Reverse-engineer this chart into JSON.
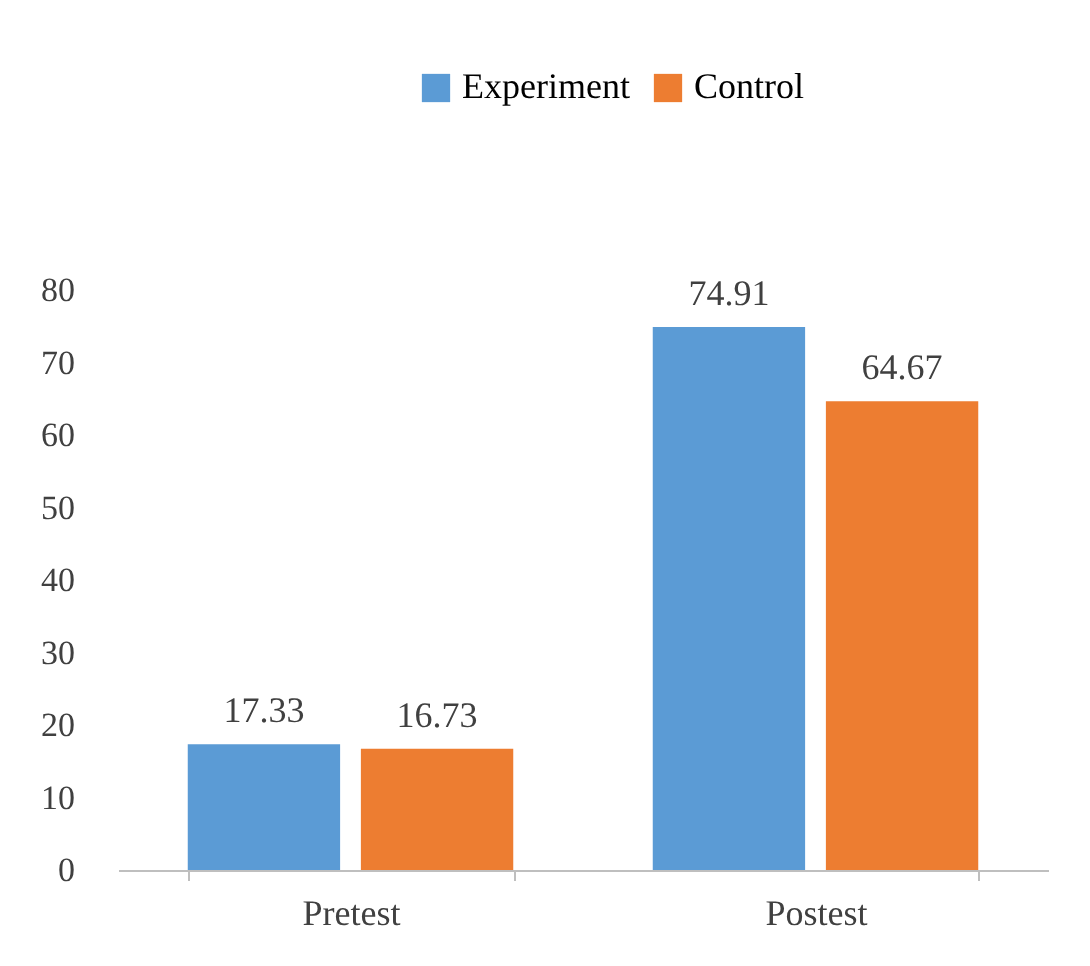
{
  "chart_data": {
    "type": "bar",
    "categories": [
      "Pretest",
      "Postest"
    ],
    "series": [
      {
        "name": "Experiment",
        "color": "#5b9bd5",
        "values": [
          17.33,
          74.91
        ]
      },
      {
        "name": "Control",
        "color": "#ed7d31",
        "values": [
          16.73,
          64.67
        ]
      }
    ],
    "ylim": [
      0,
      80
    ],
    "yticks": [
      0,
      10,
      20,
      30,
      40,
      50,
      60,
      70,
      80
    ],
    "grid": false,
    "legend": "top",
    "data_labels": true
  }
}
